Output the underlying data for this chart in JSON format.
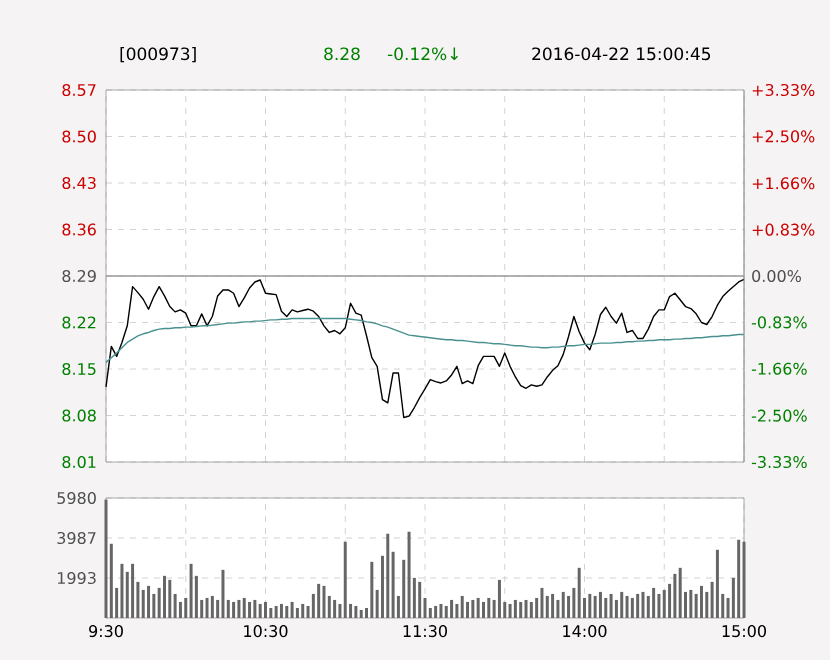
{
  "chart_data": [
    {
      "type": "line",
      "title": "[000973]",
      "annotations": [
        "8.28",
        "-0.12%↓",
        "2016-04-22 15:00:45"
      ],
      "categories": [
        null,
        null,
        null,
        null,
        null,
        null,
        null,
        null,
        null,
        null,
        null,
        null,
        null,
        null,
        null,
        null,
        null,
        null,
        null,
        null,
        null,
        null,
        null,
        null,
        null,
        null,
        null,
        null,
        null,
        null,
        null,
        null,
        null,
        null,
        null,
        null,
        null,
        null,
        null,
        null,
        null,
        null,
        null,
        null,
        null,
        null,
        null,
        null,
        null,
        null,
        null,
        null,
        null,
        null,
        null,
        null,
        null,
        null,
        null,
        null,
        null,
        null,
        null,
        null,
        null,
        null,
        null,
        null,
        null,
        null,
        null,
        null,
        null,
        null,
        null,
        null,
        null,
        null,
        null,
        null,
        null,
        null,
        null,
        null,
        null,
        null,
        null,
        null,
        null,
        null,
        null,
        null,
        null,
        null,
        null,
        null,
        null,
        null,
        null,
        null,
        null,
        null,
        null,
        null,
        null,
        null,
        null,
        null,
        null,
        null,
        null,
        null,
        null,
        null,
        null,
        null,
        null,
        null,
        null,
        null,
        null
      ],
      "ylim": [
        8.01,
        8.57
      ],
      "y2lim": [
        -3.33,
        3.33
      ],
      "grid": true,
      "tick_labels": "y",
      "yticks": [
        8.01,
        8.08,
        8.15,
        8.22,
        8.29,
        8.36,
        8.43,
        {
          "value": 8.5,
          "label": "8.50"
        },
        8.57
      ],
      "y2ticks": [
        {
          "value": -3.33,
          "label": "-3.33%"
        },
        {
          "value": -2.5,
          "label": "-2.50%"
        },
        {
          "value": -1.66,
          "label": "-1.66%"
        },
        {
          "value": -0.83,
          "label": "-0.83%"
        },
        {
          "value": 0,
          "label": "0.00%"
        },
        {
          "value": 0.83,
          "label": "+0.83%"
        },
        {
          "value": 1.66,
          "label": "+1.66%"
        },
        {
          "value": 2.5,
          "label": "+2.50%"
        },
        {
          "value": 3.33,
          "label": "+3.33%"
        }
      ],
      "ref_lines": [
        {
          "axis": "y",
          "value": 8.29,
          "color": "#999999"
        }
      ],
      "series": [
        {
          "color": "#000000",
          "values": [
            8.123,
            8.184,
            8.169,
            8.19,
            8.215,
            8.274,
            8.265,
            8.255,
            8.24,
            8.259,
            8.274,
            8.26,
            8.244,
            8.236,
            8.239,
            8.234,
            8.215,
            8.215,
            8.233,
            8.215,
            8.229,
            8.26,
            8.269,
            8.269,
            8.264,
            8.244,
            8.257,
            8.272,
            8.281,
            8.284,
            8.264,
            8.263,
            8.262,
            8.237,
            8.229,
            8.239,
            8.236,
            8.238,
            8.24,
            8.237,
            8.229,
            8.215,
            8.205,
            8.208,
            8.203,
            8.212,
            8.249,
            8.234,
            8.231,
            8.2,
            8.167,
            8.154,
            8.104,
            8.099,
            8.144,
            8.144,
            8.077,
            8.079,
            8.092,
            8.107,
            8.12,
            8.134,
            8.131,
            8.129,
            8.132,
            8.141,
            8.154,
            8.128,
            8.132,
            8.128,
            8.155,
            8.169,
            8.169,
            8.169,
            8.154,
            8.174,
            8.154,
            8.138,
            8.125,
            8.121,
            8.126,
            8.124,
            8.126,
            8.138,
            8.148,
            8.155,
            8.172,
            8.199,
            8.229,
            8.206,
            8.189,
            8.179,
            8.202,
            8.232,
            8.243,
            8.229,
            8.219,
            8.234,
            8.205,
            8.208,
            8.196,
            8.196,
            8.21,
            8.229,
            8.239,
            8.239,
            8.259,
            8.264,
            8.254,
            8.244,
            8.241,
            8.233,
            8.22,
            8.217,
            8.229,
            8.246,
            8.259,
            8.267,
            8.274,
            8.281,
            8.285
          ]
        },
        {
          "color": "#4a9090",
          "values": [
            8.16,
            8.167,
            8.174,
            8.182,
            8.19,
            8.195,
            8.2,
            8.203,
            8.205,
            8.208,
            8.21,
            8.211,
            8.211,
            8.212,
            8.212,
            8.213,
            8.213,
            8.214,
            8.215,
            8.215,
            8.216,
            8.217,
            8.218,
            8.219,
            8.219,
            8.22,
            8.221,
            8.221,
            8.222,
            8.222,
            8.223,
            8.224,
            8.224,
            8.225,
            8.225,
            8.226,
            8.226,
            8.226,
            8.226,
            8.226,
            8.226,
            8.226,
            8.226,
            8.226,
            8.226,
            8.226,
            8.225,
            8.224,
            8.223,
            8.221,
            8.22,
            8.218,
            8.215,
            8.213,
            8.21,
            8.207,
            8.204,
            8.201,
            8.2,
            8.199,
            8.198,
            8.197,
            8.196,
            8.195,
            8.194,
            8.194,
            8.193,
            8.193,
            8.192,
            8.191,
            8.19,
            8.19,
            8.189,
            8.188,
            8.188,
            8.187,
            8.186,
            8.185,
            8.185,
            8.184,
            8.183,
            8.183,
            8.182,
            8.182,
            8.183,
            8.183,
            8.184,
            8.185,
            8.185,
            8.186,
            8.187,
            8.187,
            8.188,
            8.189,
            8.189,
            8.189,
            8.19,
            8.19,
            8.191,
            8.191,
            8.192,
            8.192,
            8.193,
            8.193,
            8.194,
            8.194,
            8.194,
            8.195,
            8.195,
            8.196,
            8.196,
            8.197,
            8.197,
            8.198,
            8.199,
            8.199,
            8.2,
            8.2,
            8.201,
            8.202,
            8.202
          ]
        }
      ]
    },
    {
      "type": "bar",
      "color": "#666666",
      "ylim": [
        0,
        5980
      ],
      "yticks": [
        1993,
        3987,
        5980
      ],
      "grid": true,
      "categories": [
        "9:30",
        null,
        null,
        null,
        null,
        null,
        null,
        null,
        null,
        null,
        null,
        null,
        null,
        null,
        null,
        null,
        null,
        null,
        null,
        null,
        null,
        null,
        null,
        null,
        null,
        null,
        null,
        null,
        null,
        null,
        "10:30",
        null,
        null,
        null,
        null,
        null,
        null,
        null,
        null,
        null,
        null,
        null,
        null,
        null,
        null,
        null,
        null,
        null,
        null,
        null,
        null,
        null,
        null,
        null,
        null,
        null,
        null,
        null,
        null,
        null,
        "11:30",
        null,
        null,
        null,
        null,
        null,
        null,
        null,
        null,
        null,
        null,
        null,
        null,
        null,
        null,
        null,
        null,
        null,
        null,
        null,
        null,
        null,
        null,
        null,
        null,
        null,
        null,
        null,
        null,
        null,
        "14:00",
        null,
        null,
        null,
        null,
        null,
        null,
        null,
        null,
        null,
        null,
        null,
        null,
        null,
        null,
        null,
        null,
        null,
        null,
        null,
        null,
        null,
        null,
        null,
        null,
        null,
        null,
        null,
        null,
        null,
        "15:00"
      ],
      "values": [
        5900,
        3700,
        1500,
        2700,
        2300,
        2700,
        1800,
        1400,
        1600,
        1200,
        1500,
        2100,
        1900,
        1200,
        800,
        1000,
        2700,
        2100,
        900,
        1000,
        1100,
        900,
        2400,
        900,
        800,
        900,
        1000,
        800,
        900,
        700,
        800,
        500,
        600,
        700,
        600,
        800,
        500,
        700,
        600,
        1200,
        1700,
        1600,
        1100,
        900,
        700,
        3800,
        700,
        600,
        400,
        500,
        2800,
        1400,
        3100,
        4200,
        3300,
        1100,
        2900,
        4300,
        2000,
        1800,
        1000,
        500,
        600,
        700,
        600,
        900,
        700,
        1100,
        800,
        900,
        1000,
        800,
        1000,
        900,
        1900,
        800,
        700,
        900,
        800,
        900,
        800,
        1000,
        1500,
        1100,
        1200,
        900,
        1300,
        1100,
        1500,
        2500,
        1000,
        1200,
        1100,
        1300,
        1000,
        1200,
        900,
        1300,
        1100,
        1000,
        1200,
        1300,
        1100,
        1500,
        1200,
        1400,
        1700,
        2200,
        2500,
        1300,
        1400,
        1200,
        1600,
        1300,
        1800,
        3400,
        1200,
        1000,
        2000,
        3900,
        3800
      ]
    }
  ]
}
